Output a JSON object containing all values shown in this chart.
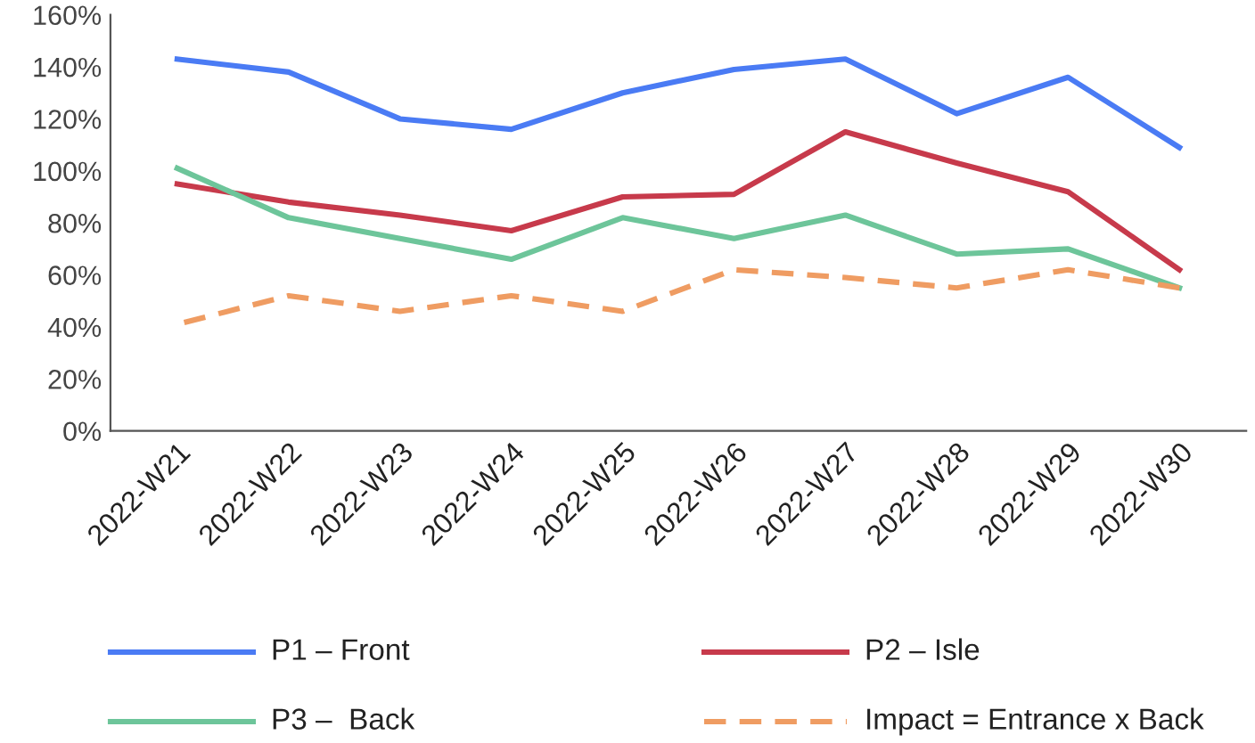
{
  "chart_data": {
    "type": "line",
    "categories": [
      "2022-W21",
      "2022-W22",
      "2022-W23",
      "2022-W24",
      "2022-W25",
      "2022-W26",
      "2022-W27",
      "2022-W28",
      "2022-W29",
      "2022-W30"
    ],
    "series": [
      {
        "name": "P1 – Front",
        "color": "#4a7bf4",
        "values": [
          143,
          138,
          120,
          116,
          130,
          139,
          143,
          122,
          136,
          109
        ]
      },
      {
        "name": "P2 – Isle",
        "color": "#c73a4b",
        "values": [
          95,
          88,
          83,
          77,
          90,
          91,
          115,
          103,
          92,
          62
        ]
      },
      {
        "name": "P3 –  Back",
        "color": "#6dc59a",
        "values": [
          101,
          82,
          74,
          66,
          82,
          74,
          83,
          68,
          70,
          55
        ]
      },
      {
        "name": "Impact = Entrance x Back",
        "color": "#ef9c62",
        "line_style": "dashed",
        "values": [
          41,
          52,
          46,
          52,
          46,
          62,
          59,
          55,
          62,
          55
        ]
      }
    ],
    "ylim": [
      0,
      160
    ],
    "yticks": [
      {
        "value": 0,
        "label": "0%"
      },
      {
        "value": 20,
        "label": "20%"
      },
      {
        "value": 40,
        "label": "40%"
      },
      {
        "value": 60,
        "label": "60%"
      },
      {
        "value": 80,
        "label": "80%"
      },
      {
        "value": 100,
        "label": "100%"
      },
      {
        "value": 120,
        "label": "120%"
      },
      {
        "value": 140,
        "label": "140%"
      },
      {
        "value": 160,
        "label": "160%"
      }
    ],
    "grid": false,
    "legend": "bottom",
    "marker": "none",
    "line_style": "solid"
  }
}
